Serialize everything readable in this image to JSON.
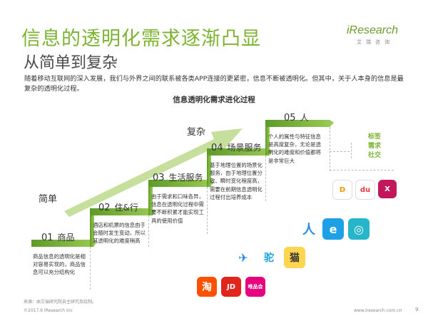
{
  "header": {
    "title": "信息的透明化需求逐渐凸显",
    "subtitle": "从简单到复杂",
    "brand_name": "iResearch",
    "brand_cn": "艾瑞咨询"
  },
  "intro": "随着移动互联网的深入发展，我们与外界之间的联系被各类APP连接的更紧密，信息不断被透明化。但其中，关于人本身的信息是最复杂的透明化过程。",
  "chart": {
    "title": "信息透明化需求进化过程",
    "label_simple": "简单",
    "label_complex": "复杂",
    "steps": [
      {
        "num": "01",
        "name": "商品",
        "desc": "商品信息的透明化是相对容易实现的，商品信息可以充分结构化"
      },
      {
        "num": "02",
        "name": "住&行",
        "desc": "酒店和机票的信息由于会随时发生变动，所以其透明化的难度稍高"
      },
      {
        "num": "03",
        "name": "生活服务",
        "desc": "由于需求和口味各异，信息在透明化过程中需要不断积累才能实现工具的使用价值"
      },
      {
        "num": "04",
        "name": "场景服务",
        "desc": "基于地理位置的场景化服务，由于地理位置分散、瞬时变化程度高，需要在前期信息透明化过程付出培养成本"
      },
      {
        "num": "05",
        "name": "人",
        "desc": "个人的属性与特征信息是高度复杂，无论是透明化的难度和价值都将是非常巨大"
      }
    ],
    "tags": [
      "标签",
      "需求",
      "社交"
    ]
  },
  "apps": {
    "row5": [
      "D",
      "du",
      "X"
    ],
    "row4": [
      "人",
      "e",
      "◎"
    ],
    "row3": [
      "✈",
      "驼",
      "猫"
    ],
    "row1": [
      "淘",
      "JD",
      "唯品会"
    ]
  },
  "footer": {
    "source": "来源：由艾瑞研究院自主研究及绘制。",
    "copyright": "©2017.9 iResearch Inc",
    "site": "www.iresearch.com.cn",
    "page": "9"
  },
  "colors": {
    "green": "#7cb432",
    "light_green": "#c7df9c"
  }
}
